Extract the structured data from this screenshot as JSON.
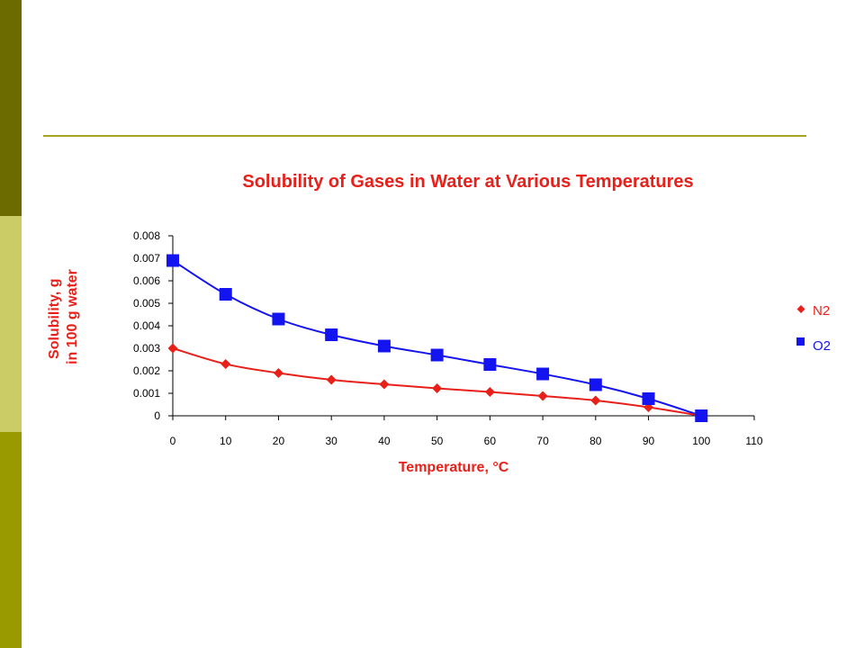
{
  "theme": {
    "bar_top": "#6b6b00",
    "bar_mid": "#cccc66",
    "bar_bot": "#999900",
    "rule": "#a5a51e",
    "red": "#e8201a",
    "blue": "#1414f0"
  },
  "chart_data": {
    "type": "line",
    "title": "Solubility of Gases in Water at Various Temperatures",
    "xlabel": "Temperature, °C",
    "ylabel_lines": [
      "Solubility, g",
      "in 100 g water"
    ],
    "xlim": [
      0,
      110
    ],
    "ylim": [
      0,
      0.008
    ],
    "x_ticks": [
      "0",
      "10",
      "20",
      "30",
      "40",
      "50",
      "60",
      "70",
      "80",
      "90",
      "100",
      "110"
    ],
    "y_ticks": [
      "0",
      "0.001",
      "0.002",
      "0.003",
      "0.004",
      "0.005",
      "0.006",
      "0.007",
      "0.008"
    ],
    "legend_position": "right",
    "series": [
      {
        "name": "N2",
        "marker": "diamond",
        "color": "#e8201a",
        "x": [
          0,
          10,
          20,
          30,
          40,
          50,
          60,
          70,
          80,
          90,
          100
        ],
        "y": [
          0.003,
          0.0023,
          0.0019,
          0.0016,
          0.0014,
          0.00122,
          0.00106,
          0.00088,
          0.00068,
          0.00038,
          0
        ]
      },
      {
        "name": "O2",
        "marker": "square",
        "color": "#1414f0",
        "x": [
          0,
          10,
          20,
          30,
          40,
          50,
          60,
          70,
          80,
          90,
          100
        ],
        "y": [
          0.0069,
          0.0054,
          0.0043,
          0.0036,
          0.0031,
          0.0027,
          0.00228,
          0.00186,
          0.00138,
          0.00076,
          0
        ]
      }
    ]
  }
}
